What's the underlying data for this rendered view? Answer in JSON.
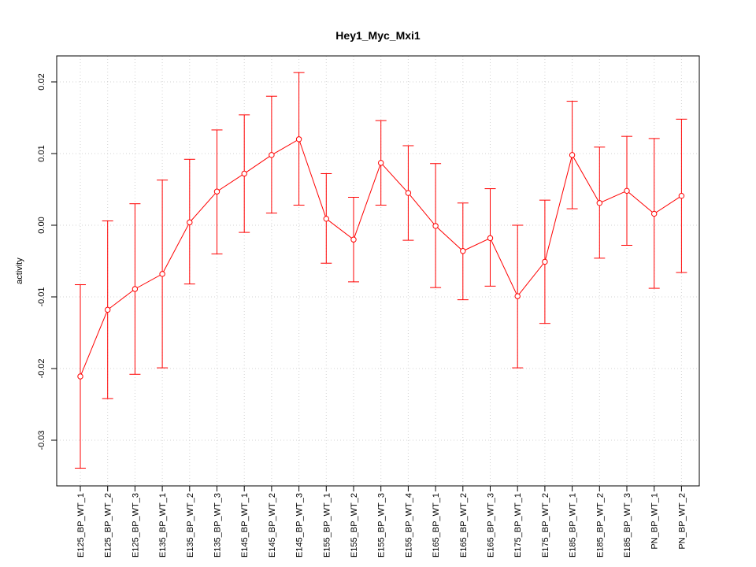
{
  "chart_data": {
    "type": "line",
    "title": "Hey1_Myc_Mxi1",
    "xlabel": "",
    "ylabel": "activity",
    "ylim": [
      -0.036,
      0.0235
    ],
    "yticks": [
      -0.03,
      -0.02,
      -0.01,
      0.0,
      0.01,
      0.02
    ],
    "ytick_labels": [
      "-0.03",
      "-0.02",
      "-0.01",
      "0.00",
      "0.01",
      "0.02"
    ],
    "grid": true,
    "categories": [
      "E125_BP_WT_1",
      "E125_BP_WT_2",
      "E125_BP_WT_3",
      "E135_BP_WT_1",
      "E135_BP_WT_2",
      "E135_BP_WT_3",
      "E145_BP_WT_1",
      "E145_BP_WT_2",
      "E145_BP_WT_3",
      "E155_BP_WT_1",
      "E155_BP_WT_2",
      "E155_BP_WT_3",
      "E155_BP_WT_4",
      "E165_BP_WT_1",
      "E165_BP_WT_2",
      "E165_BP_WT_3",
      "E175_BP_WT_1",
      "E175_BP_WT_2",
      "E185_BP_WT_1",
      "E185_BP_WT_2",
      "E185_BP_WT_3",
      "PN_BP_WT_1",
      "PN_BP_WT_2"
    ],
    "series": [
      {
        "color": "#ff0000",
        "values": [
          -0.0211,
          -0.0118,
          -0.0089,
          -0.0068,
          0.0004,
          0.0047,
          0.0072,
          0.0098,
          0.012,
          0.0009,
          -0.002,
          0.0087,
          0.0045,
          -0.0001,
          -0.0036,
          -0.0018,
          -0.0099,
          -0.0051,
          0.0098,
          0.0031,
          0.0048,
          0.0016,
          0.0041
        ],
        "error_upper": [
          -0.0083,
          0.0006,
          0.003,
          0.0063,
          0.0092,
          0.0133,
          0.0154,
          0.018,
          0.0213,
          0.0072,
          0.0039,
          0.0146,
          0.0111,
          0.0086,
          0.0031,
          0.0051,
          0.0,
          0.0035,
          0.0173,
          0.0109,
          0.0124,
          0.0121,
          0.0148
        ],
        "error_lower": [
          -0.0339,
          -0.0242,
          -0.0208,
          -0.0199,
          -0.0082,
          -0.004,
          -0.001,
          0.0017,
          0.0028,
          -0.0053,
          -0.0079,
          0.0028,
          -0.0021,
          -0.0087,
          -0.0104,
          -0.0085,
          -0.0199,
          -0.0137,
          0.0023,
          -0.0046,
          -0.0028,
          -0.0088,
          -0.0066
        ]
      }
    ]
  }
}
